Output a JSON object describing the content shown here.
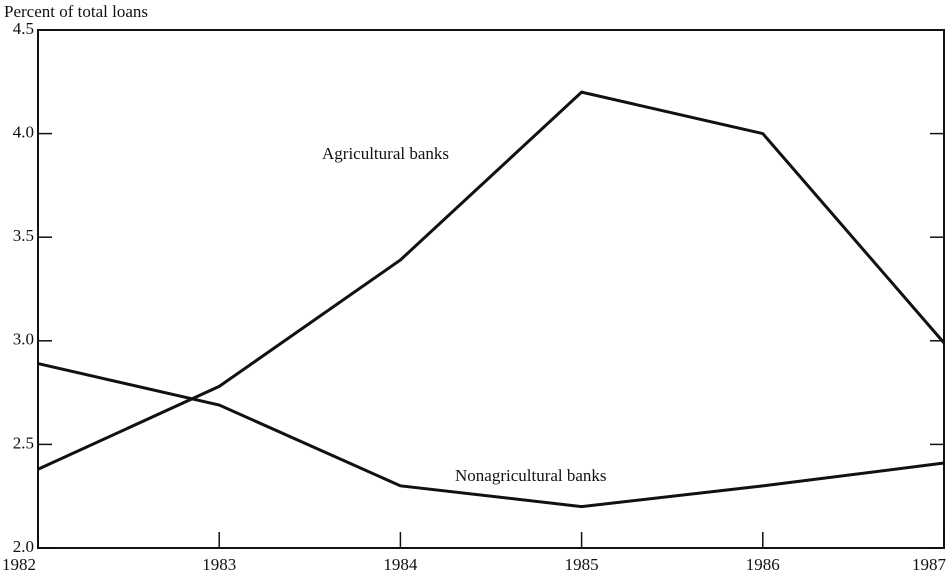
{
  "chart_data": {
    "type": "line",
    "y_label": "Percent of total loans",
    "x": [
      1982,
      1983,
      1984,
      1985,
      1986,
      1987
    ],
    "xlim": [
      1982,
      1987
    ],
    "xticks": [
      1982,
      1983,
      1984,
      1985,
      1986,
      1987
    ],
    "ylim": [
      2,
      4.5
    ],
    "yticks": [
      {
        "value": 2,
        "label": "2.0"
      },
      2.5,
      {
        "value": 3,
        "label": "3.0"
      },
      3.5,
      {
        "value": 4,
        "label": "4.0"
      },
      4.5
    ],
    "grid": false,
    "series": [
      {
        "name": "Agricultural banks",
        "color": "#111111",
        "values": [
          2.38,
          2.78,
          3.39,
          4.2,
          4.0,
          2.99
        ]
      },
      {
        "name": "Nonagricultural banks",
        "color": "#111111",
        "values": [
          2.89,
          2.69,
          2.3,
          2.2,
          2.3,
          2.41
        ]
      }
    ]
  }
}
